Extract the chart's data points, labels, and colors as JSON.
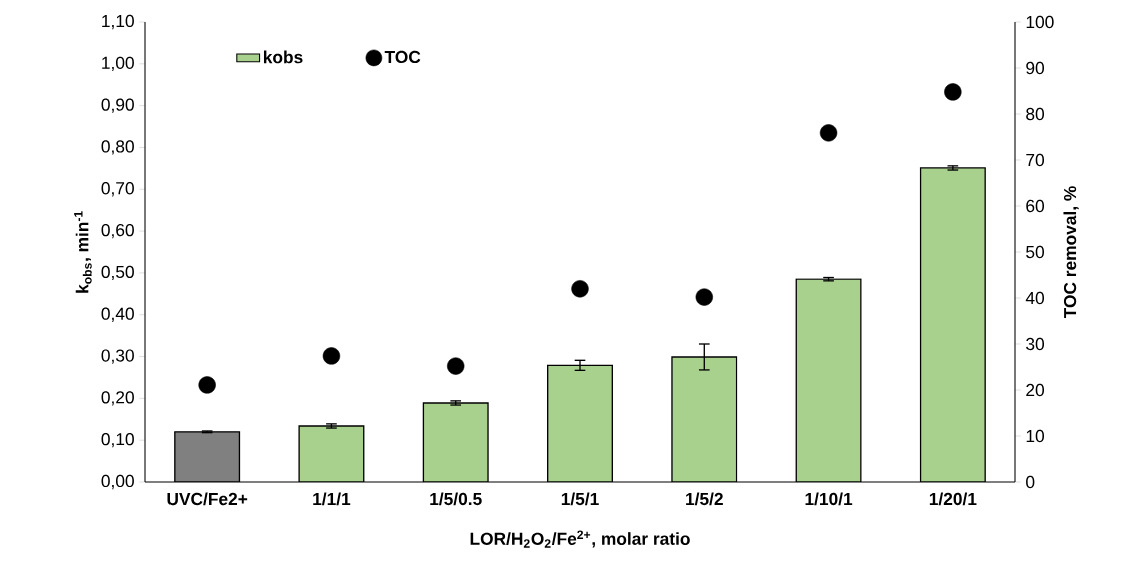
{
  "chart_data": {
    "type": "bar",
    "categories": [
      "UVC/Fe2+",
      "1/1/1",
      "1/5/0.5",
      "1/5/1",
      "1/5/2",
      "1/10/1",
      "1/20/1"
    ],
    "xlabel": "LOR/H$_{2}$O$_{2}$/Fe$^{2+}$, molar ratio",
    "ylabel": "k$_{obs}$, min$^{-1}$",
    "y2label": "TOC removal, %",
    "ylim": [
      0,
      1.1
    ],
    "yticks": [
      {
        "value": 0,
        "label": "0,00"
      },
      {
        "value": 0.1,
        "label": "0,10"
      },
      {
        "value": 0.2,
        "label": "0,20"
      },
      {
        "value": 0.3,
        "label": "0,30"
      },
      {
        "value": 0.4,
        "label": "0,40"
      },
      {
        "value": 0.5,
        "label": "0,50"
      },
      {
        "value": 0.6,
        "label": "0,60"
      },
      {
        "value": 0.7,
        "label": "0,70"
      },
      {
        "value": 0.8,
        "label": "0,80"
      },
      {
        "value": 0.9,
        "label": "0,90"
      },
      {
        "value": 1.0,
        "label": "1,00"
      },
      {
        "value": 1.1,
        "label": "1,10"
      }
    ],
    "y2lim": [
      0,
      100
    ],
    "y2ticks": [
      0,
      10,
      20,
      30,
      40,
      50,
      60,
      70,
      80,
      90,
      100
    ],
    "legend": "top left",
    "series": [
      {
        "name": "kobs",
        "color": "#a9d18e",
        "colors": [
          "#808080",
          "#a9d18e",
          "#a9d18e",
          "#a9d18e",
          "#a9d18e",
          "#a9d18e",
          "#a9d18e"
        ],
        "values": [
          0.12,
          0.134,
          0.189,
          0.279,
          0.299,
          0.485,
          0.751
        ],
        "errors": [
          0.002,
          0.005,
          0.005,
          0.012,
          0.031,
          0.004,
          0.005
        ]
      },
      {
        "name": "TOC",
        "type": "scatter",
        "axis": "y2",
        "color": "#000000",
        "values": [
          21.1,
          27.4,
          25.2,
          42.0,
          40.2,
          75.9,
          84.8
        ]
      }
    ]
  }
}
